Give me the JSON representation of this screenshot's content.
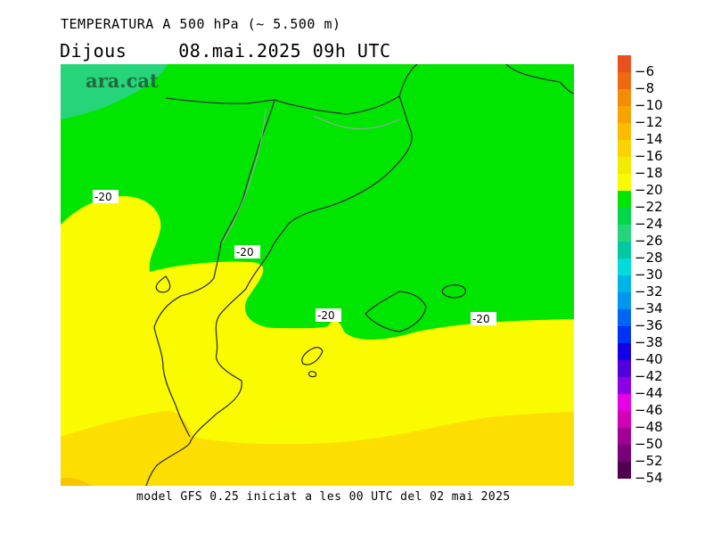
{
  "header": {
    "title": "TEMPERATURA A 500 hPa (~ 5.500 m)",
    "day": "Dijous",
    "datetime": "08.mai.2025 09h UTC"
  },
  "map": {
    "logo": "ara.cat",
    "contour_labels": [
      "-20",
      "-20",
      "-20",
      "-20"
    ],
    "colors": {
      "green": "#00e600",
      "teal": "#26d47a",
      "yellow": "#fbfb00",
      "gold": "#fcdf00"
    }
  },
  "footer": "model GFS 0.25 iniciat a les 00 UTC del 02 mai 2025",
  "colorbar": {
    "labels": [
      "-6",
      "-8",
      "-10",
      "-12",
      "-14",
      "-16",
      "-18",
      "-20",
      "-22",
      "-24",
      "-26",
      "-28",
      "-30",
      "-32",
      "-34",
      "-36",
      "-38",
      "-40",
      "-42",
      "-44",
      "-46",
      "-48",
      "-50",
      "-52",
      "-54"
    ],
    "colors": [
      "#e8501c",
      "#ee6a10",
      "#f58c08",
      "#f8a400",
      "#fabb00",
      "#fcd300",
      "#f4ea00",
      "#fbfb00",
      "#00e600",
      "#00d84a",
      "#26d47a",
      "#00c8a0",
      "#00dcdc",
      "#00b4e6",
      "#0096f0",
      "#0064f5",
      "#0032f5",
      "#1400e6",
      "#5000dc",
      "#8c00e6",
      "#e600e6",
      "#d200b4",
      "#a00096",
      "#780078",
      "#500050"
    ]
  }
}
